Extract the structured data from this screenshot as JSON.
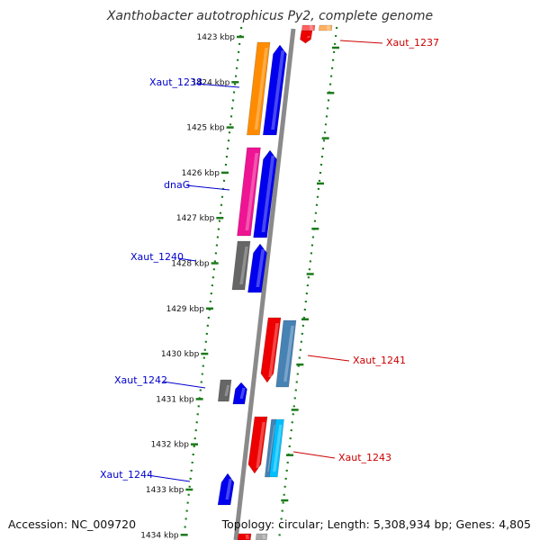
{
  "title": "Xanthobacter autotrophicus Py2, complete genome",
  "footer": {
    "accession": "Accession: NC_009720",
    "topology": "Topology: circular; Length: 5,308,934 bp; Genes: 4,805"
  },
  "ticks": [
    "1423 kbp",
    "1424 kbp",
    "1425 kbp",
    "1426 kbp",
    "1427 kbp",
    "1428 kbp",
    "1429 kbp",
    "1430 kbp",
    "1431 kbp",
    "1432 kbp",
    "1433 kbp",
    "1434 kbp"
  ],
  "gene_labels": {
    "Xaut_1237": "Xaut_1237",
    "Xaut_1238": "Xaut_1238",
    "dnaG": "dnaG",
    "Xaut_1240": "Xaut_1240",
    "Xaut_1241": "Xaut_1241",
    "Xaut_1242": "Xaut_1242",
    "Xaut_1243": "Xaut_1243",
    "Xaut_1244": "Xaut_1244"
  },
  "colors": {
    "forward_label": "#0000cc",
    "reverse_label": "#cc0000",
    "tick_green": "#1a7a1a",
    "backbone": "#888888",
    "blue": "#0000ee",
    "orange": "#ff8c00",
    "magenta": "#ee1493",
    "gray": "#666666",
    "red": "#ee0000",
    "steel": "#4682b4",
    "cyan": "#00bfff",
    "peach": "#ffb060"
  }
}
